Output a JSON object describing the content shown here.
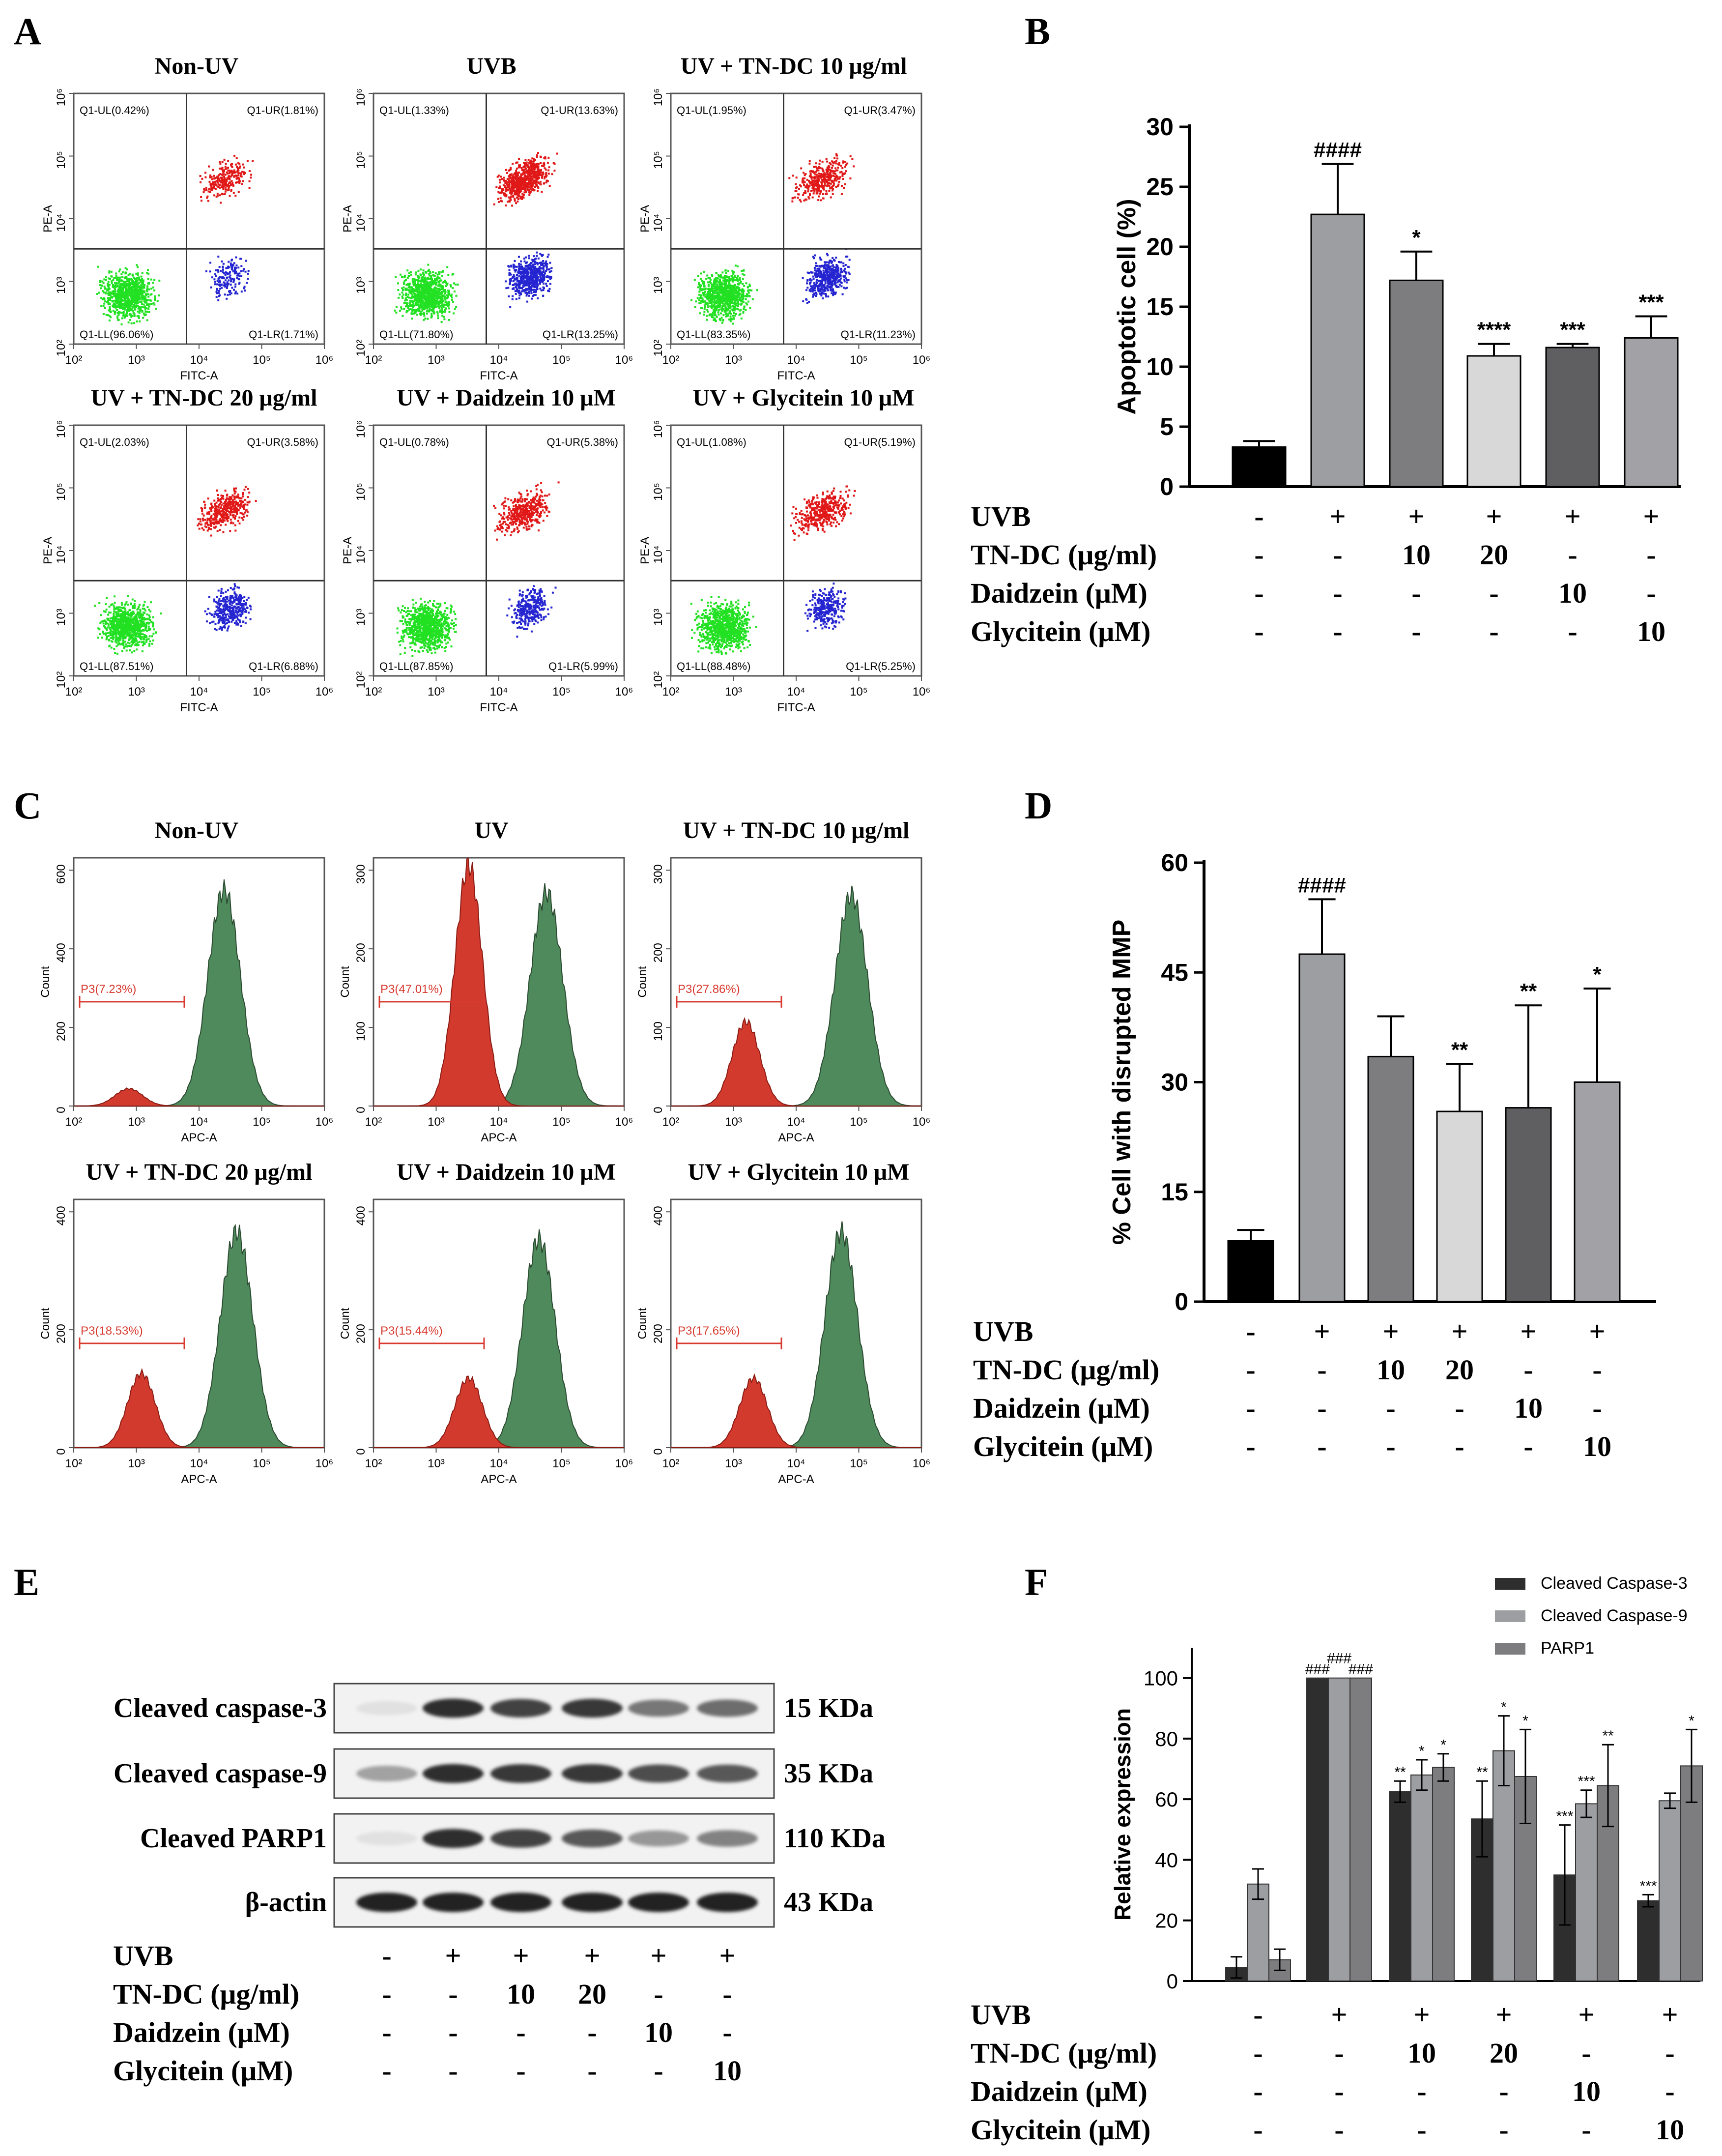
{
  "figure": {
    "panels": [
      "A",
      "B",
      "C",
      "D",
      "E",
      "F"
    ],
    "series_colors": {
      "black": "#000000",
      "gray1": "#9d9ea2",
      "gray2": "#7d7d7f",
      "gray3": "#d8d8d8",
      "gray4": "#5f5f61",
      "gray5": "#a2a2a6",
      "dark": "#2e2e2e",
      "green": "#22e022",
      "red": "#e01818",
      "blue": "#2424d0",
      "flow_green": "#4f8a5c",
      "flow_red": "#d23a2e"
    }
  },
  "panel_a": {
    "plots": [
      {
        "title": "Non-UV",
        "ul": "Q1-UL(0.42%)",
        "ur": "Q1-UR(1.81%)",
        "ll": "Q1-LL(96.06%)",
        "lr": "Q1-LR(1.71%)",
        "red": 0.3,
        "blue": 0.2
      },
      {
        "title": "UVB",
        "ul": "Q1-UL(1.33%)",
        "ur": "Q1-UR(13.63%)",
        "ll": "Q1-LL(71.80%)",
        "lr": "Q1-LR(13.25%)",
        "red": 1.0,
        "blue": 1.0
      },
      {
        "title": "UV + TN-DC 10 μg/ml",
        "ul": "Q1-UL(1.95%)",
        "ur": "Q1-UR(3.47%)",
        "ll": "Q1-LL(83.35%)",
        "lr": "Q1-LR(11.23%)",
        "red": 0.5,
        "blue": 0.8
      },
      {
        "title": "UV + TN-DC 20 μg/ml",
        "ul": "Q1-UL(2.03%)",
        "ur": "Q1-UR(3.58%)",
        "ll": "Q1-LL(87.51%)",
        "lr": "Q1-LR(6.88%)",
        "red": 0.55,
        "blue": 0.55
      },
      {
        "title": "UV + Daidzein 10 μM",
        "ul": "Q1-UL(0.78%)",
        "ur": "Q1-UR(5.38%)",
        "ll": "Q1-LL(87.85%)",
        "lr": "Q1-LR(5.99%)",
        "red": 0.6,
        "blue": 0.5
      },
      {
        "title": "UV + Glycitein 10 μM",
        "ul": "Q1-UL(1.08%)",
        "ur": "Q1-UR(5.19%)",
        "ll": "Q1-LL(88.48%)",
        "lr": "Q1-LR(5.25%)",
        "red": 0.6,
        "blue": 0.45
      }
    ],
    "xlabel": "FITC-A",
    "ylabel": "PE-A",
    "xticks": [
      "10²",
      "10³",
      "10⁴",
      "10⁵",
      "10⁶"
    ],
    "yticks": [
      "10²",
      "10³",
      "10⁴",
      "10⁵",
      "10⁶"
    ]
  },
  "panel_c": {
    "plots": [
      {
        "title": "Non-UV",
        "gate": "P3(7.23%)",
        "yticks": [
          "0",
          "200",
          "400",
          "600"
        ],
        "ymax": 600,
        "red_peak": 0.07,
        "red_pos": 0.22,
        "green_peak": 0.87,
        "green_pos": 0.6
      },
      {
        "title": "UV",
        "gate": "P3(47.01%)",
        "yticks": [
          "0",
          "100",
          "200",
          "300"
        ],
        "ymax": 300,
        "red_peak": 0.97,
        "red_pos": 0.38,
        "green_peak": 0.86,
        "green_pos": 0.69
      },
      {
        "title": "UV + TN-DC 10 μg/ml",
        "gate": "P3(27.86%)",
        "yticks": [
          "0",
          "100",
          "200",
          "300"
        ],
        "ymax": 300,
        "red_peak": 0.34,
        "red_pos": 0.3,
        "green_peak": 0.85,
        "green_pos": 0.72
      },
      {
        "title": "UV + TN-DC 20 μg/ml",
        "gate": "P3(18.53%)",
        "yticks": [
          "0",
          "200",
          "400"
        ],
        "ymax": 400,
        "red_peak": 0.3,
        "red_pos": 0.27,
        "green_peak": 0.87,
        "green_pos": 0.65
      },
      {
        "title": "UV + Daidzein 10 μM",
        "gate": "P3(15.44%)",
        "yticks": [
          "0",
          "200",
          "400"
        ],
        "ymax": 400,
        "red_peak": 0.28,
        "red_pos": 0.38,
        "green_peak": 0.84,
        "green_pos": 0.66
      },
      {
        "title": "UV + Glycitein 10 μM",
        "gate": "P3(17.65%)",
        "yticks": [
          "0",
          "200",
          "400"
        ],
        "ymax": 400,
        "red_peak": 0.28,
        "red_pos": 0.33,
        "green_peak": 0.87,
        "green_pos": 0.68
      }
    ],
    "xlabel": "APC-A",
    "ylabel": "Count",
    "xticks": [
      "10²",
      "10³",
      "10⁴",
      "10⁵",
      "10⁶"
    ]
  },
  "treatments": {
    "rows": [
      {
        "label": "UVB",
        "values": [
          "-",
          "+",
          "+",
          "+",
          "+",
          "+"
        ]
      },
      {
        "label": "TN-DC (μg/ml)",
        "values": [
          "-",
          "-",
          "10",
          "20",
          "-",
          "-"
        ]
      },
      {
        "label": "Daidzein (μM)",
        "values": [
          "-",
          "-",
          "-",
          "-",
          "10",
          "-"
        ]
      },
      {
        "label": "Glycitein (μM)",
        "values": [
          "-",
          "-",
          "-",
          "-",
          "-",
          "10"
        ]
      }
    ]
  },
  "panel_e": {
    "bands": [
      {
        "label": "Cleaved caspase-3",
        "size": "15 KDa",
        "intensity": [
          0.05,
          0.9,
          0.8,
          0.85,
          0.55,
          0.6
        ]
      },
      {
        "label": "Cleaved caspase-9",
        "size": "35 KDa",
        "intensity": [
          0.35,
          0.9,
          0.85,
          0.85,
          0.75,
          0.7
        ]
      },
      {
        "label": "Cleaved PARP1",
        "size": "110 KDa",
        "intensity": [
          0.05,
          0.9,
          0.8,
          0.7,
          0.4,
          0.5
        ]
      },
      {
        "label": "β-actin",
        "size": "43 KDa",
        "intensity": [
          0.95,
          0.95,
          0.95,
          0.95,
          0.95,
          0.95
        ]
      }
    ]
  },
  "chart_data": [
    {
      "panel": "B",
      "type": "bar",
      "ylabel": "Apoptotic cell (%)",
      "ylim": [
        0,
        30
      ],
      "yticks": [
        0,
        5,
        10,
        15,
        20,
        25,
        30
      ],
      "values": [
        3.3,
        22.7,
        17.2,
        10.9,
        11.6,
        12.4
      ],
      "errors": [
        0.5,
        4.2,
        2.4,
        1.0,
        0.3,
        1.8
      ],
      "labels": [
        "",
        "####",
        "*",
        "****",
        "***",
        "***"
      ],
      "colors": [
        "#000000",
        "#9d9ea2",
        "#7d7d7f",
        "#d8d8d8",
        "#5f5f61",
        "#a2a2a6"
      ]
    },
    {
      "panel": "D",
      "type": "bar",
      "ylabel": "% Cell with disrupted MMP",
      "ylim": [
        0,
        60
      ],
      "yticks": [
        0,
        15,
        30,
        45,
        60
      ],
      "values": [
        8.3,
        47.5,
        33.5,
        26.0,
        26.5,
        30.0
      ],
      "errors": [
        1.5,
        7.5,
        5.5,
        6.5,
        14.0,
        12.8
      ],
      "labels": [
        "",
        "####",
        "",
        "**",
        "**",
        "*"
      ],
      "colors": [
        "#000000",
        "#9d9ea2",
        "#7d7d7f",
        "#d8d8d8",
        "#5f5f61",
        "#a2a2a6"
      ]
    },
    {
      "panel": "F",
      "type": "bar",
      "ylabel": "Relative expression",
      "ylim": [
        0,
        110
      ],
      "yticks": [
        0,
        20,
        40,
        60,
        80,
        100
      ],
      "legend": [
        "Cleaved Caspase-3",
        "Cleaved Caspase-9",
        "PARP1"
      ],
      "series": [
        {
          "name": "Cleaved Caspase-3",
          "color": "#2e2e2e",
          "values": [
            4.5,
            100,
            62.5,
            53.5,
            35,
            26.5
          ],
          "errors": [
            3.5,
            0,
            3.5,
            12.5,
            16.5,
            2
          ],
          "labels": [
            "",
            "###",
            "**",
            "**",
            "***",
            "***"
          ]
        },
        {
          "name": "Cleaved Caspase-9",
          "color": "#9d9ea2",
          "values": [
            32,
            100,
            68,
            76,
            58.5,
            59.5
          ],
          "errors": [
            5,
            0,
            5,
            11.5,
            4.5,
            2.5
          ],
          "labels": [
            "",
            "###",
            "*",
            "*",
            "***",
            ""
          ]
        },
        {
          "name": "PARP1",
          "color": "#7d7d7f",
          "values": [
            7,
            100,
            70.5,
            67.5,
            64.5,
            71
          ],
          "errors": [
            3.5,
            0,
            4.5,
            15.5,
            13.5,
            12
          ],
          "labels": [
            "",
            "###",
            "*",
            "*",
            "**",
            "*"
          ]
        }
      ]
    }
  ]
}
